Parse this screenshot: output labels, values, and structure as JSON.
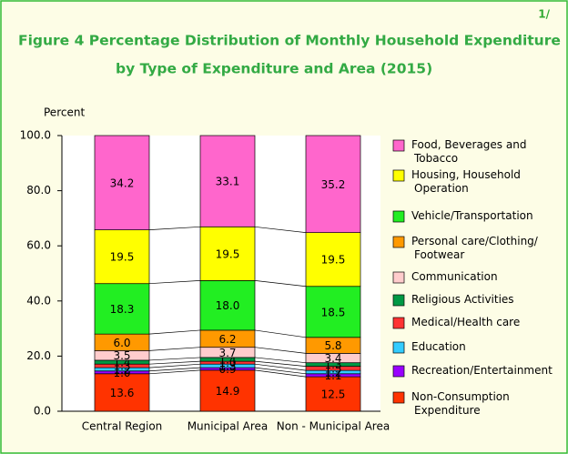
{
  "chart_data": {
    "type": "stacked_bar",
    "title_lines": [
      "Figure  4  Percentage Distribution of Monthly Household Expenditure",
      "by Type of Expenditure and Area (2015)"
    ],
    "footnote": "1/",
    "y_label": "Percent",
    "categories": [
      "Central Region",
      "Municipal Area",
      "Non - Municipal Area"
    ],
    "ylim": [
      0,
      100
    ],
    "yticks": [
      {
        "value": 0,
        "label": "0.0"
      },
      {
        "value": 20,
        "label": "20.0"
      },
      {
        "value": 40,
        "label": "40.0"
      },
      {
        "value": 60,
        "label": "60.0"
      },
      {
        "value": 80,
        "label": "80.0"
      },
      {
        "value": 100,
        "label": "100.0"
      }
    ],
    "series": [
      {
        "name": "Non-Consumption Expenditure",
        "color": "#ff3300",
        "values": [
          13.6,
          14.9,
          12.5
        ],
        "value_labels": [
          "13.6",
          "14.9",
          "12.5"
        ]
      },
      {
        "name": "Recreation/Entertainment",
        "color": "#9900ff",
        "values": [
          1.0,
          0.9,
          1.1
        ],
        "value_labels": [
          "1.0",
          "0.9",
          "1.1"
        ]
      },
      {
        "name": "Education",
        "color": "#33ccff",
        "values": [
          1.2,
          1.3,
          1.2
        ],
        "value_labels": [
          "1.2",
          "1.3",
          "1.2"
        ]
      },
      {
        "name": "Medical/Health care",
        "color": "#ff3333",
        "values": [
          1.3,
          1.0,
          1.5
        ],
        "value_labels": [
          "1.3",
          "1.0",
          "1.5"
        ]
      },
      {
        "name": "Religious Activities",
        "color": "#009944",
        "values": [
          1.4,
          1.4,
          1.3
        ],
        "value_labels": [
          "1.4",
          "1.4",
          "1.3"
        ]
      },
      {
        "name": "Communication",
        "color": "#ffcccc",
        "values": [
          3.5,
          3.7,
          3.4
        ],
        "value_labels": [
          "3.5",
          "3.7",
          "3.4"
        ]
      },
      {
        "name": "Personal care/Clothing/ Footwear",
        "color": "#ff9900",
        "values": [
          6.0,
          6.2,
          5.8
        ],
        "value_labels": [
          "6.0",
          "6.2",
          "5.8"
        ]
      },
      {
        "name": "Vehicle/Transportation",
        "color": "#22ee22",
        "values": [
          18.3,
          18.0,
          18.5
        ],
        "value_labels": [
          "18.3",
          "18.0",
          "18.5"
        ]
      },
      {
        "name": "Housing, Household Operation",
        "color": "#ffff00",
        "values": [
          19.5,
          19.5,
          19.5
        ],
        "value_labels": [
          "19.5",
          "19.5",
          "19.5"
        ]
      },
      {
        "name": "Food, Beverages and Tobacco",
        "color": "#ff66cc",
        "values": [
          34.2,
          33.1,
          35.2
        ],
        "value_labels": [
          "34.2",
          "33.1",
          "35.2"
        ]
      }
    ]
  }
}
